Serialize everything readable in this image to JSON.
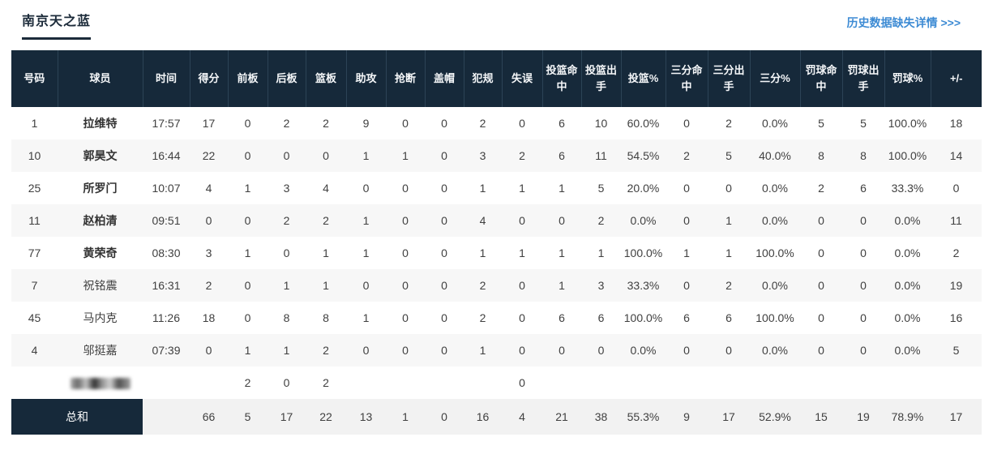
{
  "header": {
    "team_name": "南京天之蓝",
    "history_link": "历史数据缺失详情 >>>"
  },
  "colors": {
    "header_bg": "#16293a",
    "header_separator": "#2c4356",
    "link_blue": "#3d8bd4",
    "stripe_gray": "#f7f7f7",
    "total_row_bg": "#f2f2f2",
    "title_navy": "#1c2b3a"
  },
  "table": {
    "columns": [
      "号码",
      "球员",
      "时间",
      "得分",
      "前板",
      "后板",
      "篮板",
      "助攻",
      "抢断",
      "盖帽",
      "犯规",
      "失误",
      "投篮命中",
      "投篮出手",
      "投篮%",
      "三分命中",
      "三分出手",
      "三分%",
      "罚球命中",
      "罚球出手",
      "罚球%",
      "+/-"
    ],
    "rows": [
      {
        "number": "1",
        "name": "拉维特",
        "bold": true,
        "redacted": false,
        "stats": [
          "17:57",
          "17",
          "0",
          "2",
          "2",
          "9",
          "0",
          "0",
          "2",
          "0",
          "6",
          "10",
          "60.0%",
          "0",
          "2",
          "0.0%",
          "5",
          "5",
          "100.0%",
          "18"
        ]
      },
      {
        "number": "10",
        "name": "郭昊文",
        "bold": true,
        "redacted": false,
        "stats": [
          "16:44",
          "22",
          "0",
          "0",
          "0",
          "1",
          "1",
          "0",
          "3",
          "2",
          "6",
          "11",
          "54.5%",
          "2",
          "5",
          "40.0%",
          "8",
          "8",
          "100.0%",
          "14"
        ]
      },
      {
        "number": "25",
        "name": "所罗门",
        "bold": true,
        "redacted": false,
        "stats": [
          "10:07",
          "4",
          "1",
          "3",
          "4",
          "0",
          "0",
          "0",
          "1",
          "1",
          "1",
          "5",
          "20.0%",
          "0",
          "0",
          "0.0%",
          "2",
          "6",
          "33.3%",
          "0"
        ]
      },
      {
        "number": "11",
        "name": "赵柏清",
        "bold": true,
        "redacted": false,
        "stats": [
          "09:51",
          "0",
          "0",
          "2",
          "2",
          "1",
          "0",
          "0",
          "4",
          "0",
          "0",
          "2",
          "0.0%",
          "0",
          "1",
          "0.0%",
          "0",
          "0",
          "0.0%",
          "11"
        ]
      },
      {
        "number": "77",
        "name": "黄荣奇",
        "bold": true,
        "redacted": false,
        "stats": [
          "08:30",
          "3",
          "1",
          "0",
          "1",
          "1",
          "0",
          "0",
          "1",
          "1",
          "1",
          "1",
          "100.0%",
          "1",
          "1",
          "100.0%",
          "0",
          "0",
          "0.0%",
          "2"
        ]
      },
      {
        "number": "7",
        "name": "祝铭震",
        "bold": false,
        "redacted": false,
        "stats": [
          "16:31",
          "2",
          "0",
          "1",
          "1",
          "0",
          "0",
          "0",
          "2",
          "0",
          "1",
          "3",
          "33.3%",
          "0",
          "2",
          "0.0%",
          "0",
          "0",
          "0.0%",
          "19"
        ]
      },
      {
        "number": "45",
        "name": "马内克",
        "bold": false,
        "redacted": false,
        "stats": [
          "11:26",
          "18",
          "0",
          "8",
          "8",
          "1",
          "0",
          "0",
          "2",
          "0",
          "6",
          "6",
          "100.0%",
          "6",
          "6",
          "100.0%",
          "0",
          "0",
          "0.0%",
          "16"
        ]
      },
      {
        "number": "4",
        "name": "邬挺嘉",
        "bold": false,
        "redacted": false,
        "stats": [
          "07:39",
          "0",
          "1",
          "1",
          "2",
          "0",
          "0",
          "0",
          "1",
          "0",
          "0",
          "0",
          "0.0%",
          "0",
          "0",
          "0.0%",
          "0",
          "0",
          "0.0%",
          "5"
        ]
      },
      {
        "number": "",
        "name": "",
        "bold": false,
        "redacted": true,
        "stats": [
          "",
          "",
          "2",
          "0",
          "2",
          "",
          "",
          "",
          "",
          "0",
          "",
          "",
          "",
          "",
          "",
          "",
          "",
          "",
          "",
          ""
        ]
      }
    ],
    "total": {
      "label": "总和",
      "stats": [
        "",
        "66",
        "5",
        "17",
        "22",
        "13",
        "1",
        "0",
        "16",
        "4",
        "21",
        "38",
        "55.3%",
        "9",
        "17",
        "52.9%",
        "15",
        "19",
        "78.9%",
        "17"
      ]
    }
  }
}
